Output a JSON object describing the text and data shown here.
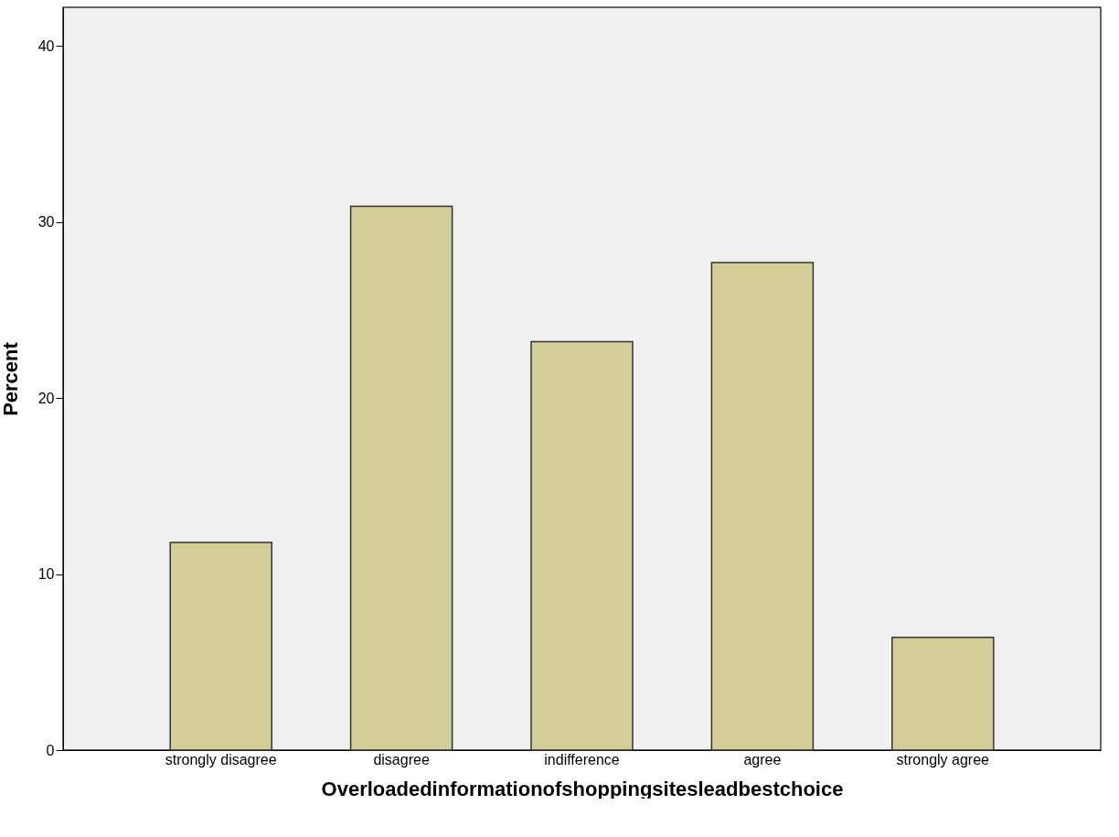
{
  "chart_data": {
    "type": "bar",
    "xlabel": "Overloadedinformationofshoppingsitesleadbestchoice",
    "ylabel": "Percent",
    "categories": [
      "strongly disagree",
      "disagree",
      "indifference",
      "agree",
      "strongly agree"
    ],
    "values": [
      11.8,
      30.9,
      23.2,
      27.7,
      6.4
    ],
    "color": "#d3cd97",
    "ylim": [
      0,
      42.2
    ],
    "yticks": [
      0,
      10,
      20,
      30,
      40
    ],
    "grid": false
  }
}
